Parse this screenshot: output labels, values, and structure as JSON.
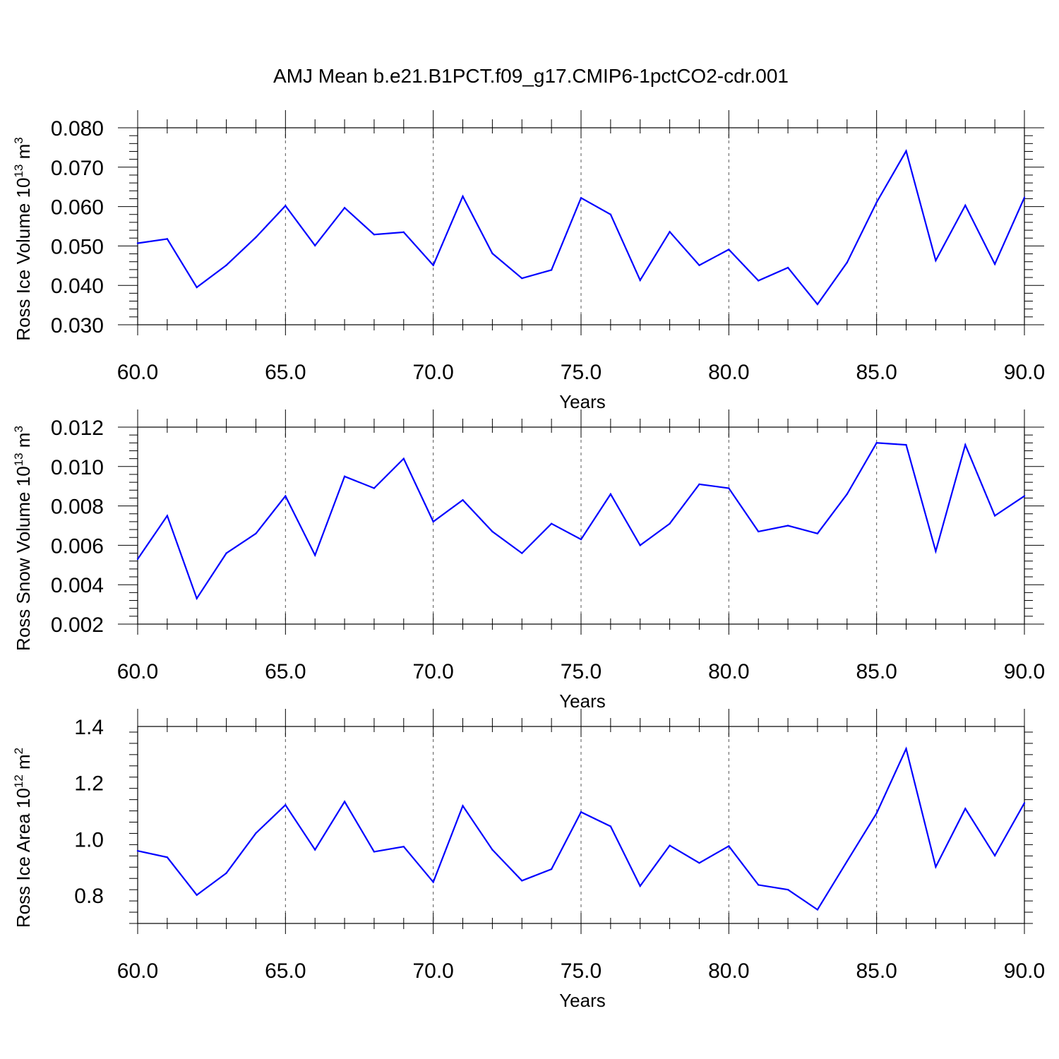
{
  "title": "AMJ Mean b.e21.B1PCT.f09_g17.CMIP6-1pctCO2-cdr.001",
  "colors": {
    "series": "#0000ff",
    "axis": "#000000",
    "grid": "#555555"
  },
  "chart_data": [
    {
      "type": "line",
      "ylabel_text": "Ross Ice Volume 10",
      "ylabel_exp": "13",
      "ylabel_unit": " m",
      "ylabel_unit_exp": "3",
      "xlabel": "Years",
      "xlim": [
        60,
        90
      ],
      "ylim": [
        0.03,
        0.08
      ],
      "xticks": [
        "60.0",
        "65.0",
        "70.0",
        "75.0",
        "80.0",
        "85.0",
        "90.0"
      ],
      "yticks": [
        "0.030",
        "0.040",
        "0.050",
        "0.060",
        "0.070",
        "0.080"
      ],
      "x": [
        60,
        61,
        62,
        63,
        64,
        65,
        66,
        67,
        68,
        69,
        70,
        71,
        72,
        73,
        74,
        75,
        76,
        77,
        78,
        79,
        80,
        81,
        82,
        83,
        84,
        85,
        86,
        87,
        88,
        89,
        90
      ],
      "values": [
        0.0507,
        0.0518,
        0.0395,
        0.0451,
        0.0522,
        0.0602,
        0.0501,
        0.0597,
        0.0529,
        0.0535,
        0.0451,
        0.0626,
        0.0481,
        0.0418,
        0.0439,
        0.0622,
        0.058,
        0.0413,
        0.0536,
        0.0451,
        0.0491,
        0.0412,
        0.0445,
        0.0352,
        0.0458,
        0.0611,
        0.0741,
        0.0463,
        0.0603,
        0.0454,
        0.0623
      ]
    },
    {
      "type": "line",
      "ylabel_text": "Ross Snow Volume 10",
      "ylabel_exp": "13",
      "ylabel_unit": " m",
      "ylabel_unit_exp": "3",
      "xlabel": "Years",
      "xlim": [
        60,
        90
      ],
      "ylim": [
        0.002,
        0.012
      ],
      "xticks": [
        "60.0",
        "65.0",
        "70.0",
        "75.0",
        "80.0",
        "85.0",
        "90.0"
      ],
      "yticks": [
        "0.002",
        "0.004",
        "0.006",
        "0.008",
        "0.010",
        "0.012"
      ],
      "x": [
        60,
        61,
        62,
        63,
        64,
        65,
        66,
        67,
        68,
        69,
        70,
        71,
        72,
        73,
        74,
        75,
        76,
        77,
        78,
        79,
        80,
        81,
        82,
        83,
        84,
        85,
        86,
        87,
        88,
        89,
        90
      ],
      "values": [
        0.0053,
        0.0075,
        0.0033,
        0.0056,
        0.0066,
        0.0085,
        0.0055,
        0.0095,
        0.0089,
        0.0104,
        0.0072,
        0.0083,
        0.0067,
        0.0056,
        0.0071,
        0.0063,
        0.0086,
        0.006,
        0.0071,
        0.0091,
        0.0089,
        0.0067,
        0.007,
        0.0066,
        0.0086,
        0.0112,
        0.0111,
        0.0057,
        0.0111,
        0.0075,
        0.0085
      ]
    },
    {
      "type": "line",
      "ylabel_text": "Ross Ice Area 10",
      "ylabel_exp": "12",
      "ylabel_unit": " m",
      "ylabel_unit_exp": "2",
      "xlabel": "Years",
      "xlim": [
        60,
        90
      ],
      "ylim": [
        0.7,
        1.4
      ],
      "xticks": [
        "60.0",
        "65.0",
        "70.0",
        "75.0",
        "80.0",
        "85.0",
        "90.0"
      ],
      "yticks": [
        "0.8",
        "1.0",
        "1.2",
        "1.4"
      ],
      "ytick_values": [
        0.8,
        1.0,
        1.2,
        1.4
      ],
      "x": [
        60,
        61,
        62,
        63,
        64,
        65,
        66,
        67,
        68,
        69,
        70,
        71,
        72,
        73,
        74,
        75,
        76,
        77,
        78,
        79,
        80,
        81,
        82,
        83,
        84,
        85,
        86,
        87,
        88,
        89,
        90
      ],
      "values": [
        0.958,
        0.935,
        0.801,
        0.879,
        1.021,
        1.121,
        0.962,
        1.133,
        0.955,
        0.973,
        0.847,
        1.118,
        0.962,
        0.852,
        0.893,
        1.096,
        1.045,
        0.833,
        0.977,
        0.915,
        0.975,
        0.837,
        0.82,
        0.749,
        0.921,
        1.092,
        1.321,
        0.901,
        1.108,
        0.941,
        1.128
      ]
    }
  ]
}
